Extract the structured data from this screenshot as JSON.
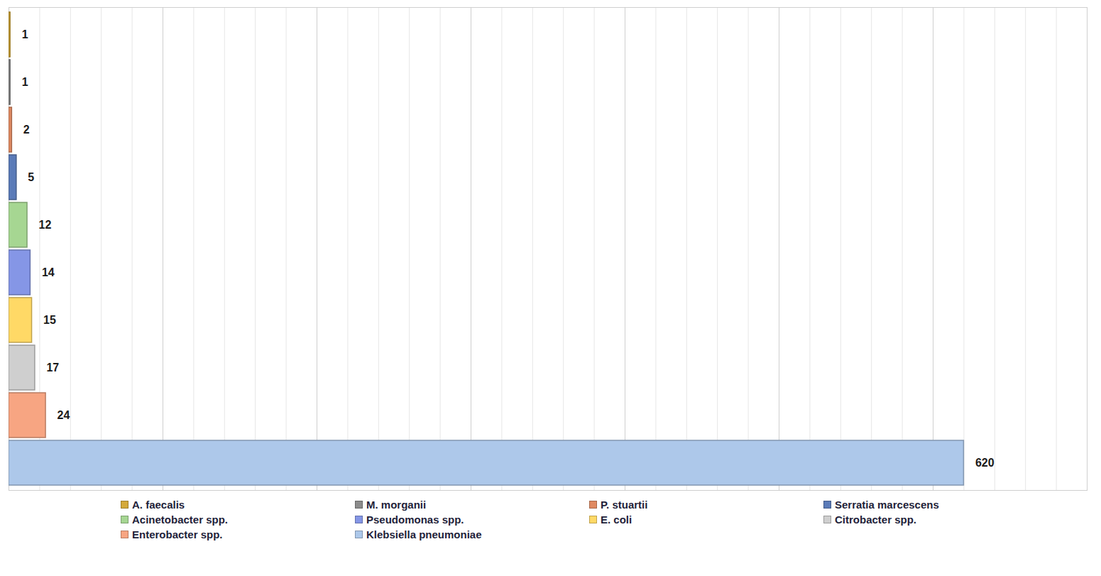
{
  "chart_data": {
    "type": "bar",
    "orientation": "horizontal",
    "categories": [
      "A. faecalis",
      "M. morganii",
      "P. stuartii",
      "Serratia marcescens",
      "Acinetobacter spp.",
      "Pseudomonas spp.",
      "E. coli",
      "Citrobacter spp.",
      "Enterobacter spp.",
      "Klebsiella pneumoniae"
    ],
    "values": [
      1,
      1,
      2,
      5,
      12,
      14,
      15,
      17,
      24,
      620
    ],
    "colors": [
      "#d4a93a",
      "#8c8c8c",
      "#e08a62",
      "#5b7bb8",
      "#a6d692",
      "#8596e6",
      "#ffd966",
      "#cfcfcf",
      "#f7a582",
      "#adc8ea"
    ],
    "xlim": [
      0,
      700
    ],
    "xticks": [
      0,
      100,
      200,
      300,
      400,
      500,
      600,
      700
    ],
    "grid": true,
    "data_labels": true,
    "tick_labels": false,
    "legend": "bottom"
  }
}
